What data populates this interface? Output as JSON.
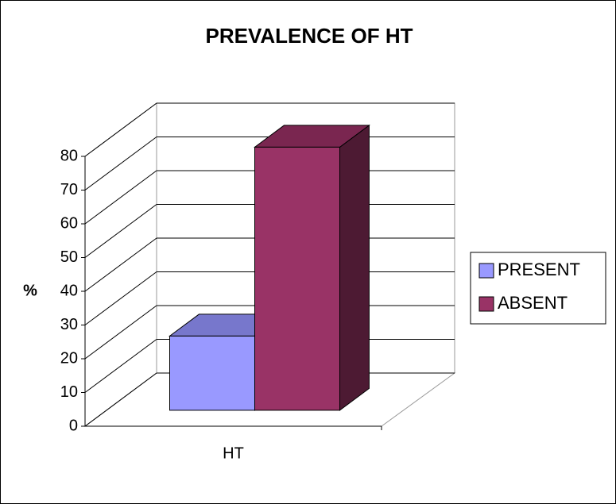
{
  "chart_data": {
    "type": "bar3d",
    "title": "PREVALENCE OF HT",
    "y_label": "%",
    "categories": [
      "HT"
    ],
    "series": [
      {
        "name": "PRESENT",
        "color": "#9999ff",
        "top_color": "#7777cc",
        "side_color": "#5555a0",
        "values": [
          22
        ]
      },
      {
        "name": "ABSENT",
        "color": "#993366",
        "top_color": "#7a2650",
        "side_color": "#4d1a33",
        "values": [
          78
        ]
      }
    ],
    "ylim": [
      0,
      80
    ],
    "yticks": [
      0,
      10,
      20,
      30,
      40,
      50,
      60,
      70,
      80
    ],
    "grid": true,
    "legend": "right"
  }
}
